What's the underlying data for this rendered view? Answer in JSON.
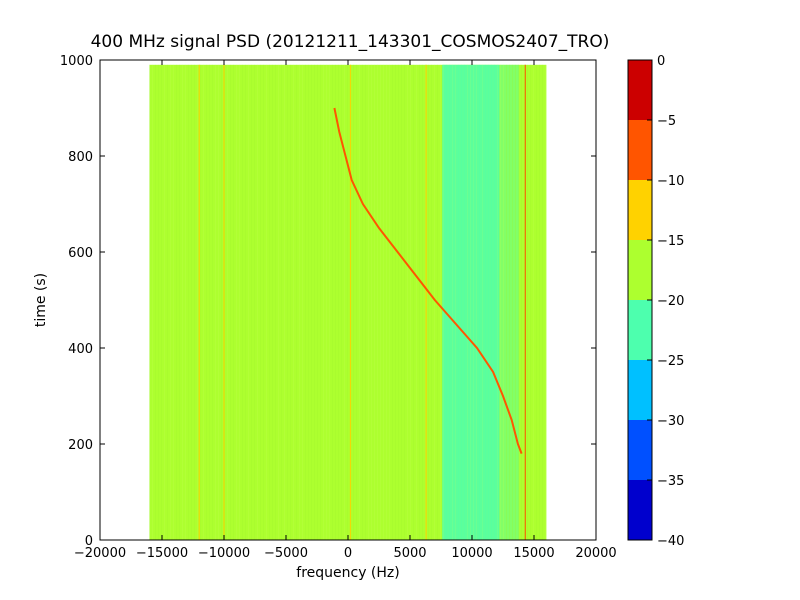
{
  "chart_data": {
    "type": "heatmap",
    "title": "400 MHz signal PSD (20121211_143301_COSMOS2407_TRO)",
    "xlabel": "frequency (Hz)",
    "ylabel": "time (s)",
    "xlim": [
      -20000,
      20000
    ],
    "ylim": [
      0,
      1000
    ],
    "x_ticks": [
      -20000,
      -15000,
      -10000,
      -5000,
      0,
      5000,
      10000,
      15000,
      20000
    ],
    "y_ticks": [
      0,
      200,
      400,
      600,
      800,
      1000
    ],
    "data_extent": {
      "freq": [
        -16000,
        16000
      ],
      "time": [
        0,
        990
      ]
    },
    "background_level": -17.5,
    "regions": [
      {
        "freq": [
          7600,
          12200
        ],
        "time": [
          0,
          990
        ],
        "level": -22
      },
      {
        "freq": [
          12200,
          13800
        ],
        "time": [
          0,
          990
        ],
        "level": -21
      }
    ],
    "vertical_lines": [
      {
        "freq": -12000,
        "time": [
          0,
          990
        ],
        "level": -12
      },
      {
        "freq": -10000,
        "time": [
          0,
          990
        ],
        "level": -14
      },
      {
        "freq": 200,
        "time": [
          0,
          990
        ],
        "level": -14
      },
      {
        "freq": 6300,
        "time": [
          0,
          990
        ],
        "level": -13
      },
      {
        "freq": 14300,
        "time": [
          0,
          990
        ],
        "level": -9
      }
    ],
    "signal_trace": {
      "level": -6,
      "time": [
        900,
        850,
        800,
        750,
        700,
        650,
        600,
        550,
        500,
        450,
        400,
        350,
        300,
        250,
        200,
        180
      ],
      "freq": [
        -1100,
        -700,
        -200,
        300,
        1200,
        2500,
        4000,
        5500,
        7000,
        8700,
        10400,
        11700,
        12500,
        13200,
        13700,
        14000
      ]
    },
    "colorbar": {
      "ticks": [
        0,
        -5,
        -10,
        -15,
        -20,
        -25,
        -30,
        -35,
        -40
      ],
      "bands": [
        {
          "range": [
            -5,
            0
          ],
          "color": "#cc0000"
        },
        {
          "range": [
            -10,
            -5
          ],
          "color": "#ff5500"
        },
        {
          "range": [
            -15,
            -10
          ],
          "color": "#ffd200"
        },
        {
          "range": [
            -20,
            -15
          ],
          "color": "#adff2f"
        },
        {
          "range": [
            -25,
            -20
          ],
          "color": "#4dffae"
        },
        {
          "range": [
            -30,
            -25
          ],
          "color": "#00c0ff"
        },
        {
          "range": [
            -35,
            -30
          ],
          "color": "#0050ff"
        },
        {
          "range": [
            -40,
            -35
          ],
          "color": "#0000cd"
        }
      ]
    }
  }
}
